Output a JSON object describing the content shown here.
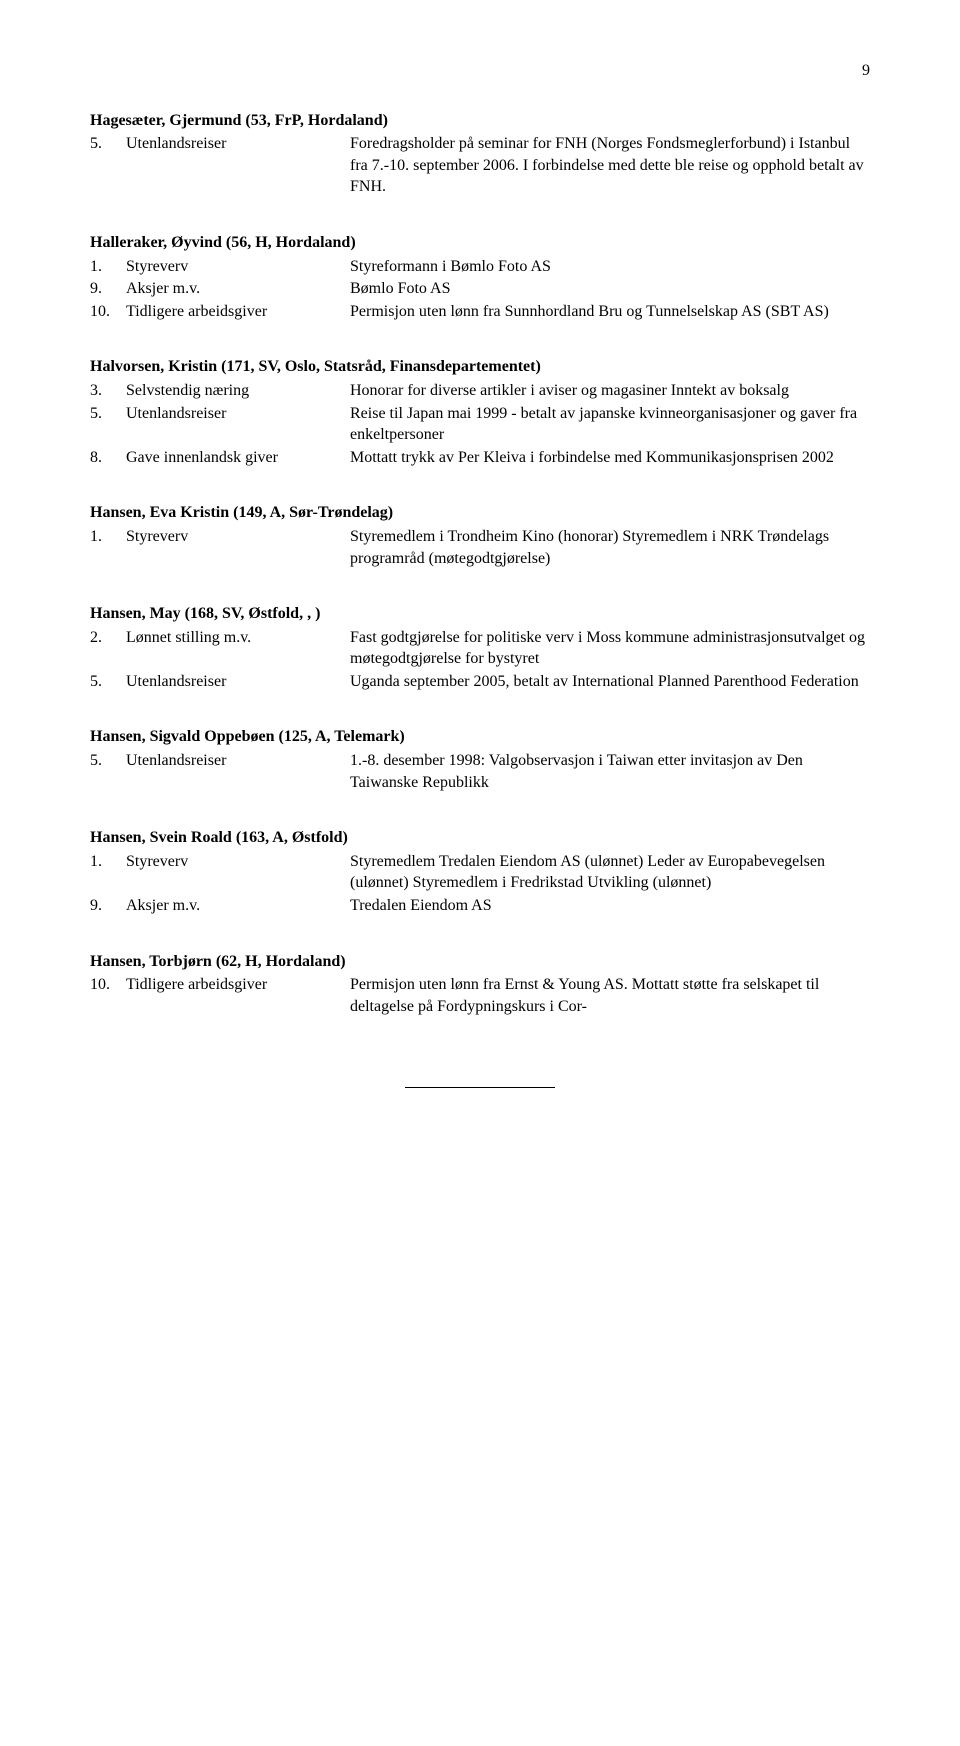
{
  "page_number": "9",
  "entries": [
    {
      "name": "Hagesæter, Gjermund (53, FrP, Hordaland)",
      "rows": [
        {
          "num": "5.",
          "label": "Utenlandsreiser",
          "value": "Foredragsholder på seminar for FNH (Norges Fondsmeglerforbund) i Istanbul fra 7.-10. september 2006. I forbindelse med dette ble reise og opphold betalt av FNH."
        }
      ]
    },
    {
      "name": "Halleraker, Øyvind (56, H, Hordaland)",
      "rows": [
        {
          "num": "1.",
          "label": "Styreverv",
          "value": "Styreformann i Bømlo Foto AS"
        },
        {
          "num": "9.",
          "label": "Aksjer m.v.",
          "value": "Bømlo Foto AS"
        },
        {
          "num": "10.",
          "label": "Tidligere arbeidsgiver",
          "value": "Permisjon uten lønn fra Sunnhordland Bru og Tunnelselskap AS (SBT AS)"
        }
      ]
    },
    {
      "name": "Halvorsen, Kristin (171, SV, Oslo, Statsråd, Finansdepartementet)",
      "rows": [
        {
          "num": "3.",
          "label": "Selvstendig næring",
          "value": "Honorar for diverse artikler i aviser og magasiner Inntekt av boksalg"
        },
        {
          "num": "5.",
          "label": "Utenlandsreiser",
          "value": "Reise til Japan mai 1999 - betalt av japanske kvinneorganisasjoner og gaver fra enkeltpersoner"
        },
        {
          "num": "8.",
          "label": "Gave innenlandsk giver",
          "value": "Mottatt trykk av Per Kleiva i forbindelse med Kommunikasjonsprisen 2002"
        }
      ]
    },
    {
      "name": "Hansen, Eva Kristin (149, A, Sør-Trøndelag)",
      "rows": [
        {
          "num": "1.",
          "label": "Styreverv",
          "value": "Styremedlem i Trondheim Kino (honorar) Styremedlem  i NRK Trøndelags programråd (møtegodtgjørelse)"
        }
      ]
    },
    {
      "name": "Hansen, May (168, SV, Østfold, , )",
      "rows": [
        {
          "num": "2.",
          "label": "Lønnet stilling m.v.",
          "value": "Fast godtgjørelse for politiske verv i Moss kommune administrasjonsutvalget og møtegodtgjørelse for bystyret"
        },
        {
          "num": "5.",
          "label": "Utenlandsreiser",
          "value": "Uganda september 2005, betalt av International Planned Parenthood Federation"
        }
      ]
    },
    {
      "name": "Hansen, Sigvald Oppebøen (125, A, Telemark)",
      "rows": [
        {
          "num": "5.",
          "label": "Utenlandsreiser",
          "value": "1.-8. desember 1998: Valgobservasjon i Taiwan etter invitasjon av Den Taiwanske Republikk"
        }
      ]
    },
    {
      "name": "Hansen, Svein Roald (163, A, Østfold)",
      "rows": [
        {
          "num": "1.",
          "label": "Styreverv",
          "value": "Styremedlem Tredalen Eiendom AS (ulønnet) Leder av Europabevegelsen (ulønnet) Styremedlem i Fredrikstad Utvikling (ulønnet)"
        },
        {
          "num": "9.",
          "label": "Aksjer m.v.",
          "value": "Tredalen Eiendom AS"
        }
      ]
    },
    {
      "name": "Hansen, Torbjørn (62, H, Hordaland)",
      "rows": [
        {
          "num": "10.",
          "label": "Tidligere arbeidsgiver",
          "value": "Permisjon uten lønn fra Ernst & Young AS. Mottatt støtte fra selskapet til deltagelse på Fordypningskurs i Cor-"
        }
      ]
    }
  ]
}
